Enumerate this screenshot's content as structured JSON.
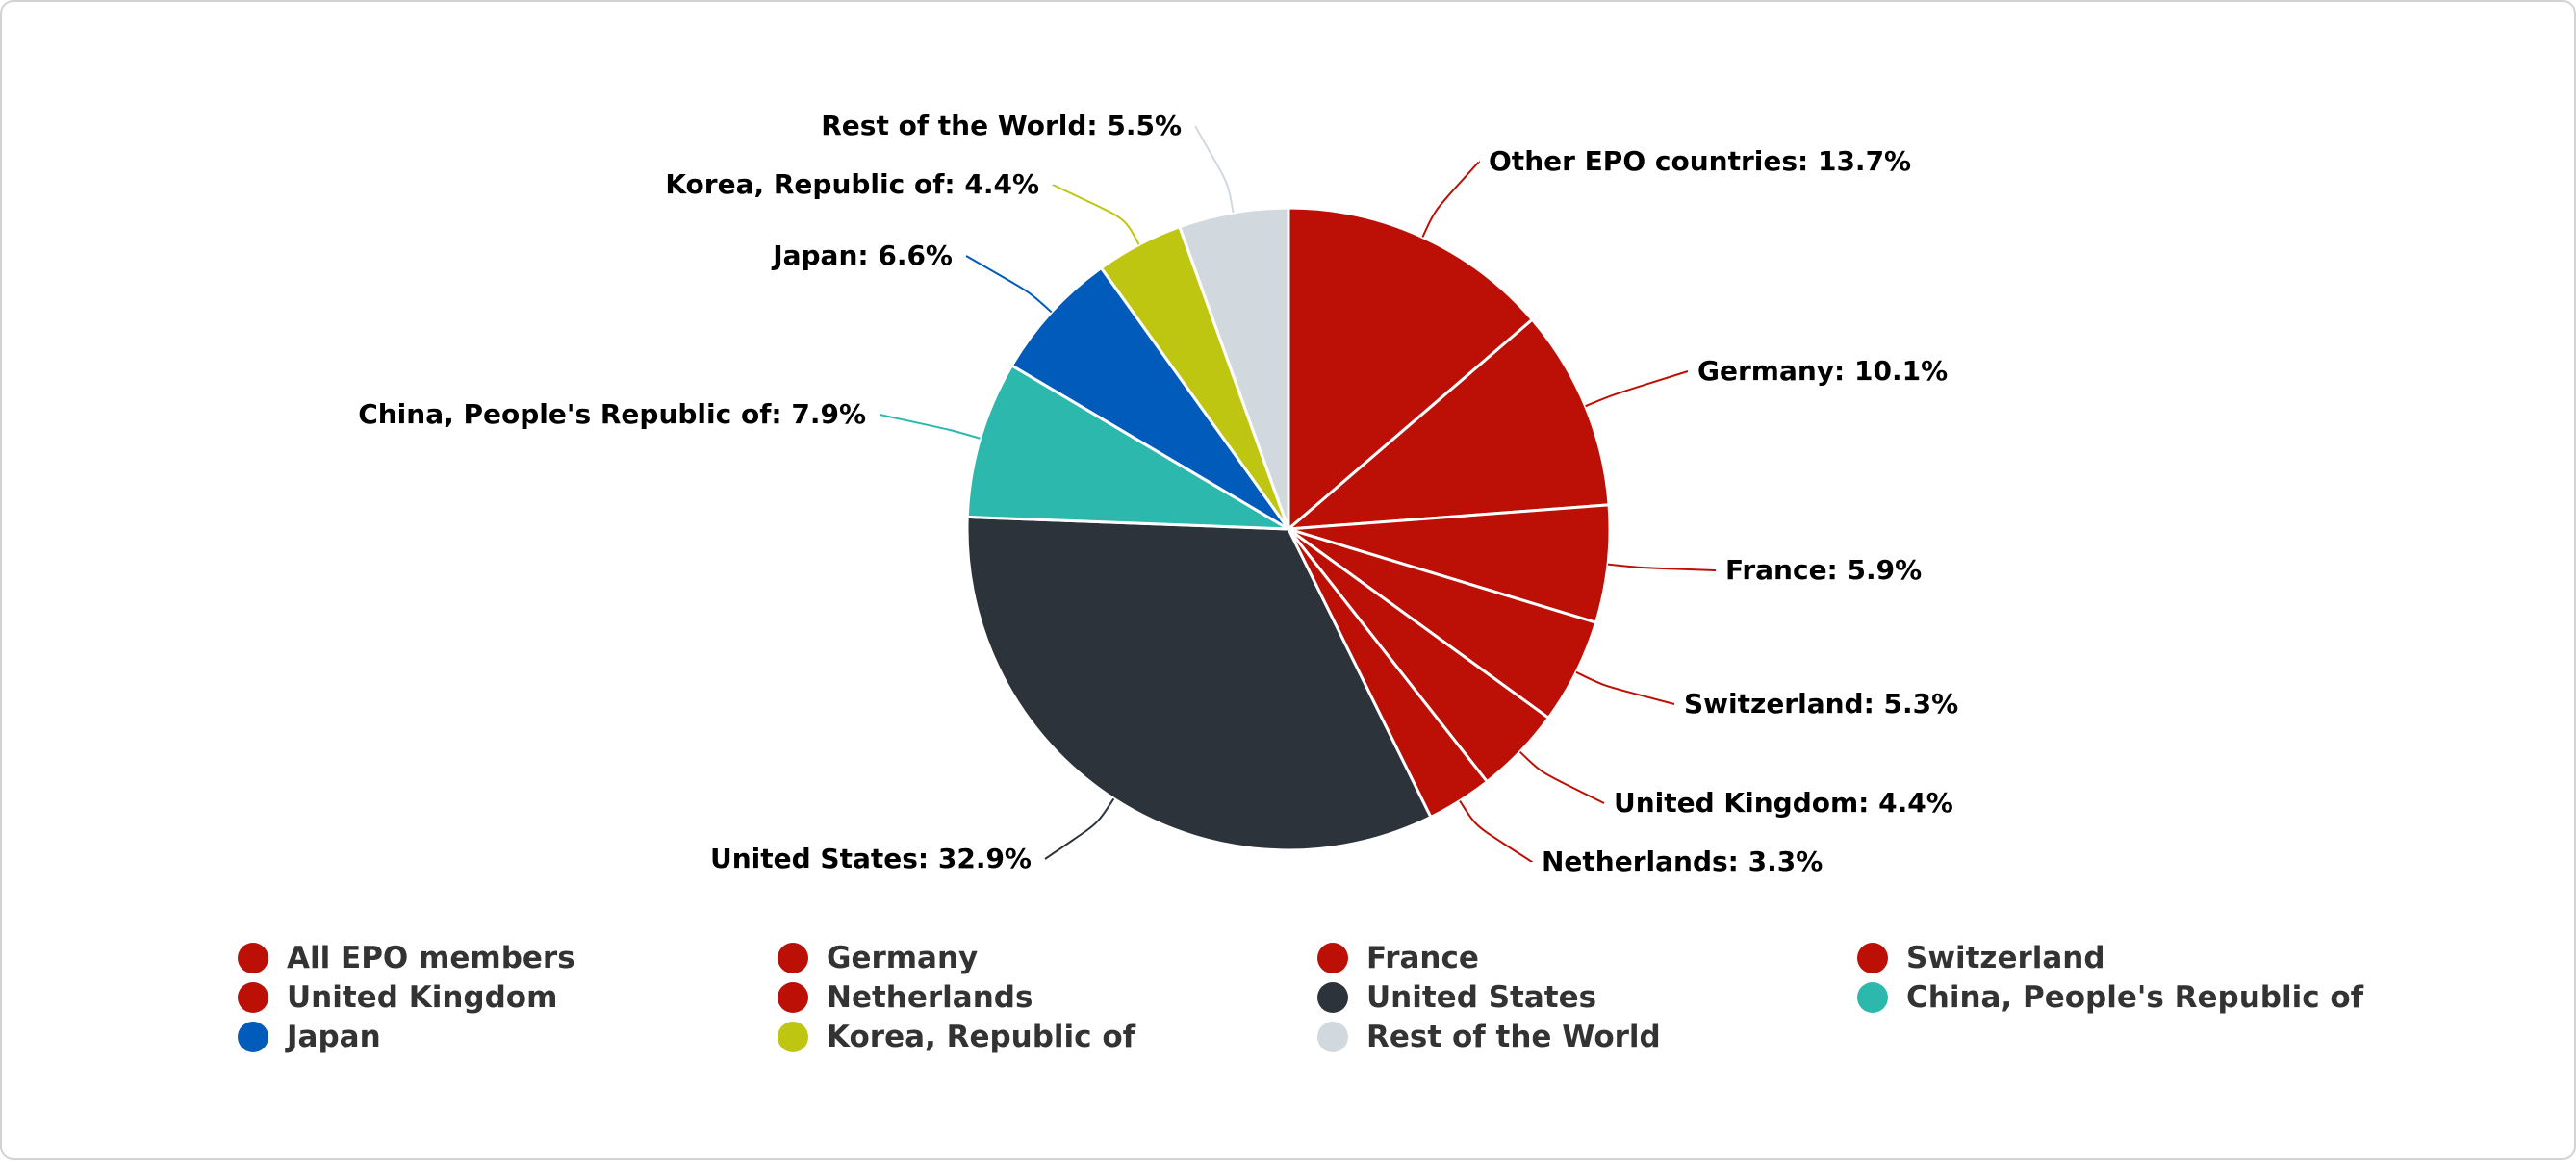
{
  "chart_data": {
    "type": "pie",
    "title": "",
    "start_angle_deg": 0,
    "slices": [
      {
        "label": "Other EPO countries",
        "value": 13.7,
        "color": "#bc1006",
        "label_side": "right"
      },
      {
        "label": "Germany",
        "value": 10.1,
        "color": "#bc1006",
        "label_side": "right"
      },
      {
        "label": "France",
        "value": 5.9,
        "color": "#bc1006",
        "label_side": "right"
      },
      {
        "label": "Switzerland",
        "value": 5.3,
        "color": "#bc1006",
        "label_side": "right"
      },
      {
        "label": "United Kingdom",
        "value": 4.4,
        "color": "#bc1006",
        "label_side": "right"
      },
      {
        "label": "Netherlands",
        "value": 3.3,
        "color": "#bc1006",
        "label_side": "right"
      },
      {
        "label": "United States",
        "value": 32.9,
        "color": "#2d333b",
        "label_side": "left"
      },
      {
        "label": "China, People's Republic of",
        "value": 7.9,
        "color": "#2db8ad",
        "label_side": "left"
      },
      {
        "label": "Japan",
        "value": 6.6,
        "color": "#005bbb",
        "label_side": "left"
      },
      {
        "label": "Korea, Republic of",
        "value": 4.4,
        "color": "#bec612",
        "label_side": "left"
      },
      {
        "label": "Rest of the World",
        "value": 5.5,
        "color": "#d1d9de",
        "label_side": "left"
      }
    ],
    "legend": {
      "placement": "bottom",
      "items": [
        {
          "label": "All EPO members",
          "color": "#bc1006"
        },
        {
          "label": "Germany",
          "color": "#bc1006"
        },
        {
          "label": "France",
          "color": "#bc1006"
        },
        {
          "label": "Switzerland",
          "color": "#bc1006"
        },
        {
          "label": "United Kingdom",
          "color": "#bc1006"
        },
        {
          "label": "Netherlands",
          "color": "#bc1006"
        },
        {
          "label": "United States",
          "color": "#2d333b"
        },
        {
          "label": "China, People's Republic of",
          "color": "#2db8ad"
        },
        {
          "label": "Japan",
          "color": "#005bbb"
        },
        {
          "label": "Korea, Republic of",
          "color": "#bec612"
        },
        {
          "label": "Rest of the World",
          "color": "#d1d9de"
        }
      ]
    }
  }
}
